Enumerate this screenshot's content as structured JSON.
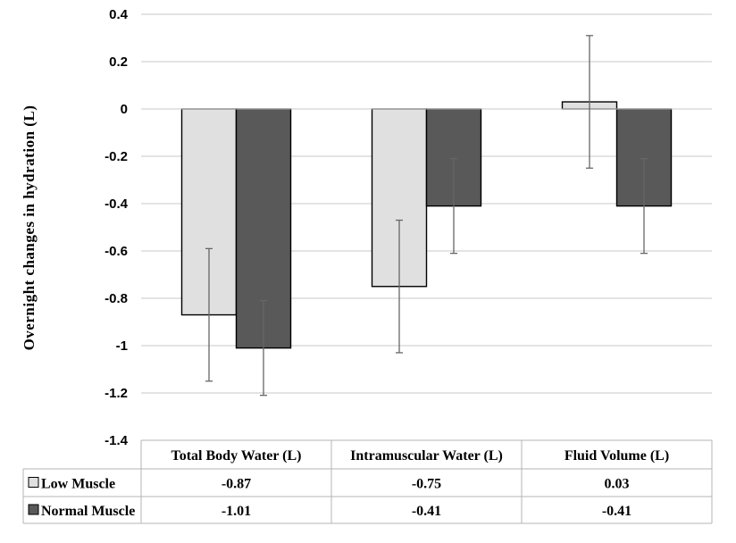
{
  "chart_data": {
    "type": "bar",
    "title": "",
    "xlabel": "",
    "ylabel": "Overnight changes in hydration  (L)",
    "ylim": [
      -1.4,
      0.4
    ],
    "yticks": [
      "0.4",
      "0.2",
      "0",
      "-0.2",
      "-0.4",
      "-0.6",
      "-0.8",
      "-1",
      "-1.2",
      "-1.4"
    ],
    "ytick_values": [
      0.4,
      0.2,
      0,
      -0.2,
      -0.4,
      -0.6,
      -0.8,
      -1,
      -1.2,
      -1.4
    ],
    "grid": true,
    "legend": "data table below chart",
    "categories": [
      "Total Body Water (L)",
      "Intramuscular Water (L)",
      "Fluid Volume (L)"
    ],
    "series": [
      {
        "name": "Low Muscle",
        "values": [
          -0.87,
          -0.75,
          0.03
        ],
        "labels": [
          "-0.87",
          "-0.75",
          "0.03"
        ],
        "error": [
          0.28,
          0.28,
          0.28
        ],
        "color": "#e0e0e0"
      },
      {
        "name": "Normal Muscle",
        "values": [
          -1.01,
          -0.41,
          -0.41
        ],
        "labels": [
          "-1.01",
          "-0.41",
          "-0.41"
        ],
        "error": [
          0.2,
          0.2,
          0.2
        ],
        "color": "#595959"
      }
    ]
  }
}
